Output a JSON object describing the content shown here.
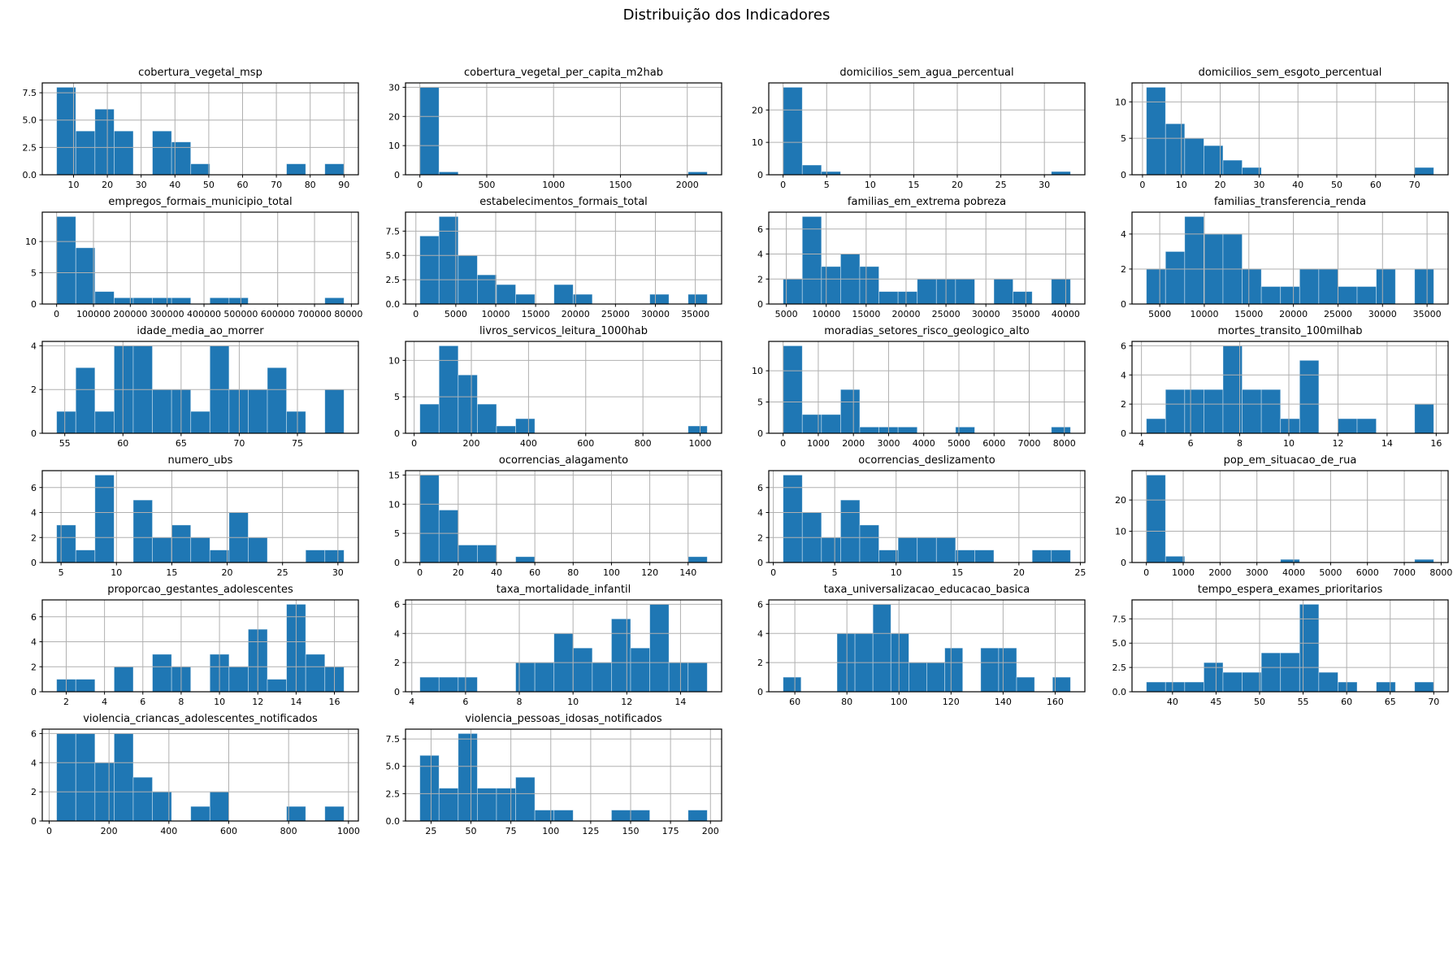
{
  "suptitle": "Distribuição dos Indicadores",
  "colors": {
    "bar": "#1f77b4",
    "grid": "#b0b0b0",
    "axis": "#000000",
    "background": "#ffffff"
  },
  "chart_data": [
    {
      "type": "bar",
      "title": "cobertura_vegetal_msp",
      "bin_start": 5,
      "bin_width": 5.667,
      "values": [
        8,
        4,
        6,
        4,
        0,
        4,
        3,
        1,
        0,
        0,
        0,
        0,
        1,
        0,
        1
      ],
      "xticks": [
        10,
        20,
        30,
        40,
        50,
        60,
        70,
        80,
        90
      ],
      "yticks": [
        0,
        2.5,
        5,
        7.5
      ],
      "ytick_labels": [
        "0.0",
        "2.5",
        "5.0",
        "7.5"
      ]
    },
    {
      "type": "bar",
      "title": "cobertura_vegetal_per_capita_m2hab",
      "bin_start": 0,
      "bin_width": 143.3,
      "values": [
        30,
        1,
        0,
        0,
        0,
        0,
        0,
        0,
        0,
        0,
        0,
        0,
        0,
        0,
        1
      ],
      "xticks": [
        0,
        500,
        1000,
        1500,
        2000
      ],
      "yticks": [
        0,
        10,
        20,
        30
      ]
    },
    {
      "type": "bar",
      "title": "domicilios_sem_agua_percentual",
      "bin_start": 0,
      "bin_width": 2.2,
      "values": [
        27,
        3,
        1,
        0,
        0,
        0,
        0,
        0,
        0,
        0,
        0,
        0,
        0,
        0,
        1
      ],
      "xticks": [
        0,
        5,
        10,
        15,
        20,
        25,
        30
      ],
      "yticks": [
        0,
        10,
        20
      ]
    },
    {
      "type": "bar",
      "title": "domicilios_sem_esgoto_percentual",
      "bin_start": 1,
      "bin_width": 4.93,
      "values": [
        12,
        7,
        5,
        4,
        2,
        1,
        0,
        0,
        0,
        0,
        0,
        0,
        0,
        0,
        1
      ],
      "xticks": [
        0,
        10,
        20,
        30,
        40,
        50,
        60,
        70
      ],
      "yticks": [
        0,
        5,
        10
      ]
    },
    {
      "type": "bar",
      "title": "empregos_formais_municipio_total",
      "bin_start": 0,
      "bin_width": 52000,
      "values": [
        14,
        9,
        2,
        1,
        1,
        1,
        1,
        0,
        1,
        1,
        0,
        0,
        0,
        0,
        1
      ],
      "xticks": [
        0,
        100000,
        200000,
        300000,
        400000,
        500000,
        600000,
        700000,
        800000
      ],
      "yticks": [
        0,
        5,
        10
      ]
    },
    {
      "type": "bar",
      "title": "estabelecimentos_formais_total",
      "bin_start": 500,
      "bin_width": 2400,
      "values": [
        7,
        9,
        5,
        3,
        2,
        1,
        0,
        2,
        1,
        0,
        0,
        0,
        1,
        0,
        1
      ],
      "xticks": [
        0,
        5000,
        10000,
        15000,
        20000,
        25000,
        30000,
        35000
      ],
      "yticks": [
        0,
        2.5,
        5,
        7.5
      ],
      "ytick_labels": [
        "0.0",
        "2.5",
        "5.0",
        "7.5"
      ]
    },
    {
      "type": "bar",
      "title": "familias_em_extrema pobreza",
      "bin_start": 4600,
      "bin_width": 2400,
      "values": [
        2,
        7,
        3,
        4,
        3,
        1,
        1,
        2,
        2,
        2,
        0,
        2,
        1,
        0,
        2
      ],
      "xticks": [
        5000,
        10000,
        15000,
        20000,
        25000,
        30000,
        35000,
        40000
      ],
      "yticks": [
        0,
        2,
        4,
        6
      ]
    },
    {
      "type": "bar",
      "title": "familias_transferencia_renda",
      "bin_start": 3500,
      "bin_width": 2150,
      "values": [
        2,
        3,
        5,
        4,
        4,
        2,
        1,
        1,
        2,
        2,
        1,
        1,
        2,
        0,
        2
      ],
      "xticks": [
        5000,
        10000,
        15000,
        20000,
        25000,
        30000,
        35000
      ],
      "yticks": [
        0,
        2,
        4
      ]
    },
    {
      "type": "bar",
      "title": "idade_media_ao_morrer",
      "bin_start": 54.3,
      "bin_width": 1.647,
      "values": [
        1,
        3,
        1,
        4,
        4,
        2,
        2,
        1,
        4,
        2,
        2,
        3,
        1,
        0,
        2
      ],
      "xticks": [
        55,
        60,
        65,
        70,
        75
      ],
      "yticks": [
        0,
        2,
        4
      ]
    },
    {
      "type": "bar",
      "title": "livros_servicos_leitura_1000hab",
      "bin_start": 20,
      "bin_width": 67,
      "values": [
        4,
        12,
        8,
        4,
        1,
        2,
        0,
        0,
        0,
        0,
        0,
        0,
        0,
        0,
        1
      ],
      "xticks": [
        0,
        200,
        400,
        600,
        800,
        1000
      ],
      "yticks": [
        0,
        5,
        10
      ]
    },
    {
      "type": "bar",
      "title": "moradias_setores_risco_geologico_alto",
      "bin_start": 0,
      "bin_width": 545,
      "values": [
        14,
        3,
        3,
        7,
        1,
        1,
        1,
        0,
        0,
        1,
        0,
        0,
        0,
        0,
        1
      ],
      "xticks": [
        0,
        1000,
        2000,
        3000,
        4000,
        5000,
        6000,
        7000,
        8000
      ],
      "yticks": [
        0,
        5,
        10
      ]
    },
    {
      "type": "bar",
      "title": "mortes_transito_100milhab",
      "bin_start": 4.2,
      "bin_width": 0.78,
      "values": [
        1,
        3,
        3,
        3,
        6,
        3,
        3,
        1,
        5,
        0,
        1,
        1,
        0,
        0,
        2
      ],
      "xticks": [
        4,
        6,
        8,
        10,
        12,
        14,
        16
      ],
      "yticks": [
        0,
        2,
        4,
        6
      ]
    },
    {
      "type": "bar",
      "title": "numero_ubs",
      "bin_start": 4.6,
      "bin_width": 1.73,
      "values": [
        3,
        1,
        7,
        0,
        5,
        2,
        3,
        2,
        1,
        4,
        2,
        0,
        0,
        1,
        1
      ],
      "xticks": [
        5,
        10,
        15,
        20,
        25,
        30
      ],
      "yticks": [
        0,
        2,
        4,
        6
      ]
    },
    {
      "type": "bar",
      "title": "ocorrencias_alagamento",
      "bin_start": 0,
      "bin_width": 10,
      "values": [
        15,
        9,
        3,
        3,
        0,
        1,
        0,
        0,
        0,
        0,
        0,
        0,
        0,
        0,
        1
      ],
      "xticks": [
        0,
        20,
        40,
        60,
        80,
        100,
        120,
        140
      ],
      "yticks": [
        0,
        5,
        10,
        15
      ]
    },
    {
      "type": "bar",
      "title": "ocorrencias_deslizamento",
      "bin_start": 0.8,
      "bin_width": 1.56,
      "values": [
        7,
        4,
        2,
        5,
        3,
        1,
        2,
        2,
        2,
        1,
        1,
        0,
        0,
        1,
        1
      ],
      "xticks": [
        0,
        5,
        10,
        15,
        20,
        25
      ],
      "yticks": [
        0,
        2,
        4,
        6
      ]
    },
    {
      "type": "bar",
      "title": "pop_em_situacao_de_rua",
      "bin_start": 0,
      "bin_width": 520,
      "values": [
        28,
        2,
        0,
        0,
        0,
        0,
        0,
        1,
        0,
        0,
        0,
        0,
        0,
        0,
        1
      ],
      "xticks": [
        0,
        1000,
        2000,
        3000,
        4000,
        5000,
        6000,
        7000,
        8000
      ],
      "yticks": [
        0,
        10,
        20
      ]
    },
    {
      "type": "bar",
      "title": "proporcao_gestantes_adolescentes",
      "bin_start": 1.5,
      "bin_width": 1.0,
      "values": [
        1,
        1,
        0,
        2,
        0,
        3,
        2,
        0,
        3,
        2,
        5,
        1,
        7,
        3,
        2
      ],
      "xticks": [
        2,
        4,
        6,
        8,
        10,
        12,
        14,
        16
      ],
      "yticks": [
        0,
        2,
        4,
        6
      ]
    },
    {
      "type": "bar",
      "title": "taxa_mortalidade_infantil",
      "bin_start": 4.3,
      "bin_width": 0.713,
      "values": [
        1,
        1,
        1,
        0,
        0,
        2,
        2,
        4,
        3,
        2,
        5,
        3,
        6,
        2,
        2
      ],
      "xticks": [
        4,
        6,
        8,
        10,
        12,
        14
      ],
      "yticks": [
        0,
        2,
        4,
        6
      ]
    },
    {
      "type": "bar",
      "title": "taxa_universalizacao_educacao_basica",
      "bin_start": 55.5,
      "bin_width": 6.9,
      "values": [
        1,
        0,
        0,
        4,
        4,
        6,
        4,
        2,
        2,
        3,
        0,
        3,
        3,
        1,
        0,
        1
      ],
      "xticks": [
        60,
        80,
        100,
        120,
        140,
        160
      ],
      "yticks": [
        0,
        2,
        4,
        6
      ]
    },
    {
      "type": "bar",
      "title": "tempo_espera_exames_prioritarios",
      "bin_start": 37,
      "bin_width": 2.2,
      "values": [
        1,
        1,
        1,
        3,
        2,
        2,
        4,
        4,
        9,
        2,
        1,
        0,
        1,
        0,
        1
      ],
      "xticks": [
        40,
        45,
        50,
        55,
        60,
        65,
        70
      ],
      "yticks": [
        0,
        2.5,
        5,
        7.5
      ],
      "ytick_labels": [
        "0.0",
        "2.5",
        "5.0",
        "7.5"
      ]
    },
    {
      "type": "bar",
      "title": "violencia_criancas_adolescentes_notificados",
      "bin_start": 25,
      "bin_width": 64,
      "values": [
        6,
        6,
        4,
        6,
        3,
        2,
        0,
        1,
        2,
        0,
        0,
        0,
        1,
        0,
        1
      ],
      "xticks": [
        0,
        200,
        400,
        600,
        800,
        1000
      ],
      "yticks": [
        0,
        2,
        4,
        6
      ]
    },
    {
      "type": "bar",
      "title": "violencia_pessoas_idosas_notificados",
      "bin_start": 18,
      "bin_width": 12,
      "values": [
        6,
        3,
        8,
        3,
        3,
        4,
        1,
        1,
        0,
        0,
        1,
        1,
        0,
        0,
        1
      ],
      "xticks": [
        25,
        50,
        75,
        100,
        125,
        150,
        175,
        200
      ],
      "yticks": [
        0,
        2.5,
        5,
        7.5
      ],
      "ytick_labels": [
        "0.0",
        "2.5",
        "5.0",
        "7.5"
      ]
    }
  ]
}
